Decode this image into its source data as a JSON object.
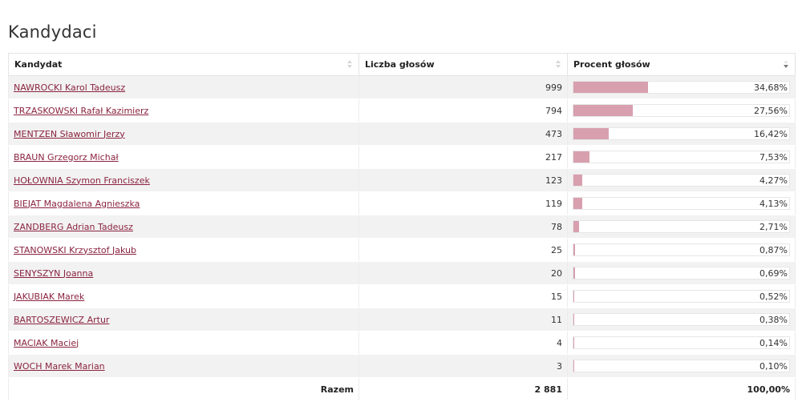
{
  "page": {
    "title": "Kandydaci"
  },
  "table": {
    "headers": {
      "candidate": "Kandydat",
      "votes": "Liczba głosów",
      "percent": "Procent głosów"
    },
    "rows": [
      {
        "name": "NAWROCKI Karol Tadeusz",
        "votes": "999",
        "percent_label": "34,68%",
        "percent": 34.68
      },
      {
        "name": "TRZASKOWSKI Rafał Kazimierz",
        "votes": "794",
        "percent_label": "27,56%",
        "percent": 27.56
      },
      {
        "name": "MENTZEN Sławomir Jerzy",
        "votes": "473",
        "percent_label": "16,42%",
        "percent": 16.42
      },
      {
        "name": "BRAUN Grzegorz Michał",
        "votes": "217",
        "percent_label": "7,53%",
        "percent": 7.53
      },
      {
        "name": "HOŁOWNIA Szymon Franciszek",
        "votes": "123",
        "percent_label": "4,27%",
        "percent": 4.27
      },
      {
        "name": "BIEJAT Magdalena Agnieszka",
        "votes": "119",
        "percent_label": "4,13%",
        "percent": 4.13
      },
      {
        "name": "ZANDBERG Adrian Tadeusz",
        "votes": "78",
        "percent_label": "2,71%",
        "percent": 2.71
      },
      {
        "name": "STANOWSKI Krzysztof Jakub",
        "votes": "25",
        "percent_label": "0,87%",
        "percent": 0.87
      },
      {
        "name": "SENYSZYN Joanna",
        "votes": "20",
        "percent_label": "0,69%",
        "percent": 0.69
      },
      {
        "name": "JAKUBIAK Marek",
        "votes": "15",
        "percent_label": "0,52%",
        "percent": 0.52
      },
      {
        "name": "BARTOSZEWICZ Artur",
        "votes": "11",
        "percent_label": "0,38%",
        "percent": 0.38
      },
      {
        "name": "MACIAK Maciej",
        "votes": "4",
        "percent_label": "0,14%",
        "percent": 0.14
      },
      {
        "name": "WOCH Marek Marian",
        "votes": "3",
        "percent_label": "0,10%",
        "percent": 0.1
      }
    ],
    "footer": {
      "label": "Razem",
      "votes_total": "2 881",
      "percent_total": "100,00%"
    }
  },
  "colors": {
    "bar_fill": "#d8a0ae",
    "link": "#8a2340"
  },
  "icons": {
    "sort_candidate": "sort-icon",
    "sort_votes": "sort-icon",
    "sort_percent": "sort-desc-icon"
  }
}
